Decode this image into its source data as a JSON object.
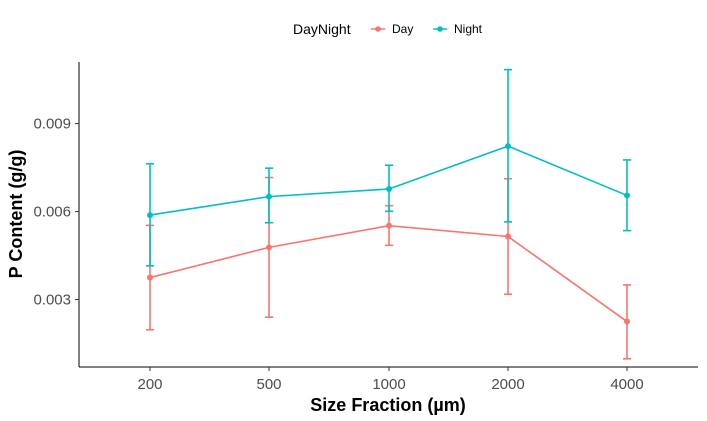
{
  "chart_data": {
    "type": "line",
    "xlabel": "Size Fraction (µm)",
    "ylabel": "P Content (g/g)",
    "categories": [
      "200",
      "500",
      "1000",
      "2000",
      "4000"
    ],
    "ylim": [
      0.0007,
      0.0111
    ],
    "yticks": [
      0.003,
      0.006,
      0.009
    ],
    "ytick_labels": [
      "0.003",
      "0.006",
      "0.009"
    ],
    "grid": false,
    "legend": {
      "title": "DayNight",
      "position": "top"
    },
    "series": [
      {
        "name": "Day",
        "color": "#F8766D",
        "values": [
          0.00375,
          0.00478,
          0.00552,
          0.00515,
          0.00225
        ],
        "lower": [
          0.00197,
          0.0024,
          0.00485,
          0.00318,
          0.00098
        ],
        "upper": [
          0.00553,
          0.00716,
          0.0062,
          0.00712,
          0.0035
        ]
      },
      {
        "name": "Night",
        "color": "#00BFC4",
        "values": [
          0.00588,
          0.00651,
          0.00677,
          0.00823,
          0.00655
        ],
        "lower": [
          0.00415,
          0.00562,
          0.00601,
          0.00565,
          0.00535
        ],
        "upper": [
          0.00763,
          0.00748,
          0.00758,
          0.01084,
          0.00776
        ]
      }
    ]
  }
}
